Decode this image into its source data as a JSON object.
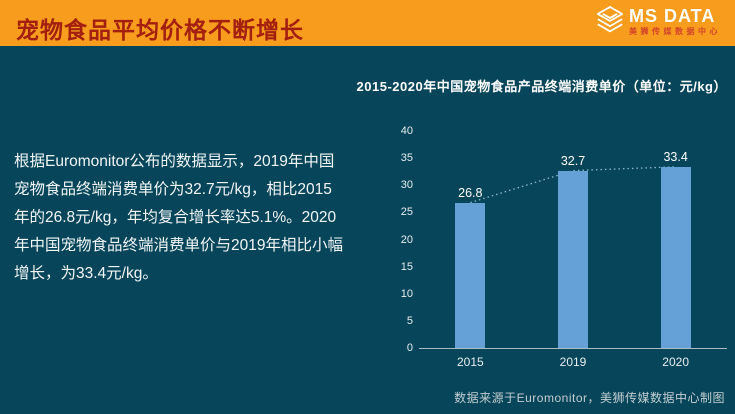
{
  "slide": {
    "title": "宠物食品平均价格不断增长",
    "body_text": "根据Euromonitor公布的数据显示，2019年中国宠物食品终端消费单价为32.7元/kg，相比2015年的26.8元/kg，年均复合增长率达5.1%。2020年中国宠物食品终端消费单价与2019年相比小幅增长，为33.4元/kg。",
    "source_note": "数据来源于Euromonitor，美狮传媒数据中心制图"
  },
  "logo": {
    "name": "MS DATA",
    "subtitle": "美狮传媒数据中心"
  },
  "chart_data": {
    "type": "bar",
    "title": "2015-2020年中国宠物食品产品终端消费单价（单位：元/kg）",
    "categories": [
      "2015",
      "2019",
      "2020"
    ],
    "values": [
      26.8,
      32.7,
      33.4
    ],
    "ylim": [
      0,
      40
    ],
    "ytick_step": 5,
    "grid": false,
    "legend": "none",
    "trendline": true
  },
  "colors": {
    "banner": "#f79c1d",
    "banner_title": "#a32010",
    "background": "#07465a",
    "bar": "#65a0d6",
    "trendline": "#8fb8cf",
    "axis": "#a9bcc3",
    "logo_subtitle": "#d2452a"
  }
}
